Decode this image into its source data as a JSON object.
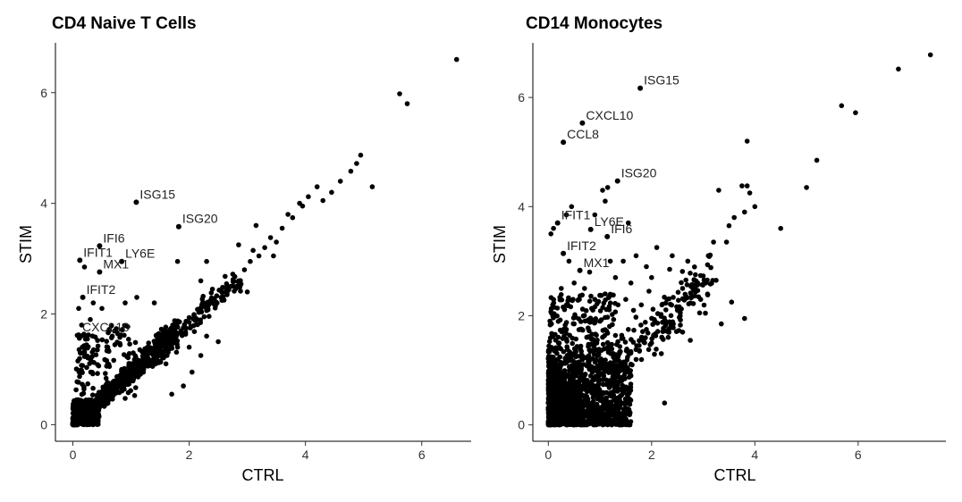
{
  "chart_data": [
    {
      "type": "scatter",
      "title": "CD4 Naive T Cells",
      "xlabel": "CTRL",
      "ylabel": "STIM",
      "xlim": [
        -0.3,
        6.85
      ],
      "ylim": [
        -0.3,
        6.9
      ],
      "xticks": [
        0,
        2,
        4,
        6
      ],
      "yticks": [
        0,
        2,
        4,
        6
      ],
      "grid": false,
      "labeled_points": [
        {
          "label": "ISG15",
          "x": 1.09,
          "y": 4.02
        },
        {
          "label": "ISG20",
          "x": 1.82,
          "y": 3.58
        },
        {
          "label": "IFI6",
          "x": 0.46,
          "y": 3.23
        },
        {
          "label": "IFIT1",
          "x": 0.12,
          "y": 2.97
        },
        {
          "label": "LY6E",
          "x": 0.84,
          "y": 2.95
        },
        {
          "label": "MX1",
          "x": 0.46,
          "y": 2.76
        },
        {
          "label": "IFIT2",
          "x": 0.17,
          "y": 2.3
        },
        {
          "label": "CXCL10",
          "x": 0.1,
          "y": 1.62
        }
      ],
      "points": [
        [
          6.6,
          6.6
        ],
        [
          5.62,
          5.98
        ],
        [
          5.75,
          5.8
        ],
        [
          5.15,
          4.3
        ],
        [
          4.95,
          4.87
        ],
        [
          4.88,
          4.72
        ],
        [
          4.78,
          4.58
        ],
        [
          4.6,
          4.4
        ],
        [
          4.45,
          4.2
        ],
        [
          4.3,
          4.05
        ],
        [
          4.2,
          4.3
        ],
        [
          4.05,
          4.12
        ],
        [
          3.95,
          3.95
        ],
        [
          3.9,
          4.0
        ],
        [
          3.78,
          3.74
        ],
        [
          3.7,
          3.8
        ],
        [
          3.6,
          3.55
        ],
        [
          3.5,
          3.3
        ],
        [
          3.4,
          3.38
        ],
        [
          3.3,
          3.2
        ],
        [
          3.2,
          3.05
        ],
        [
          3.1,
          3.15
        ],
        [
          3.05,
          2.95
        ],
        [
          2.95,
          2.8
        ],
        [
          2.85,
          2.6
        ],
        [
          2.75,
          2.72
        ],
        [
          2.65,
          2.5
        ],
        [
          2.55,
          2.3
        ],
        [
          2.4,
          2.45
        ],
        [
          2.3,
          2.2
        ],
        [
          2.2,
          2.05
        ],
        [
          2.1,
          1.9
        ],
        [
          2.0,
          1.85
        ],
        [
          1.9,
          1.75
        ],
        [
          2.85,
          3.25
        ],
        [
          3.15,
          3.6
        ],
        [
          2.3,
          2.95
        ],
        [
          3.45,
          3.05
        ],
        [
          3.0,
          2.4
        ],
        [
          2.6,
          2.25
        ],
        [
          2.2,
          2.6
        ],
        [
          1.8,
          2.95
        ],
        [
          1.1,
          2.3
        ],
        [
          0.9,
          2.2
        ],
        [
          0.2,
          2.85
        ],
        [
          0.1,
          2.1
        ],
        [
          0.35,
          2.2
        ],
        [
          0.3,
          1.9
        ],
        [
          0.5,
          2.1
        ],
        [
          0.15,
          1.8
        ],
        [
          0.25,
          1.55
        ],
        [
          0.2,
          1.3
        ],
        [
          0.6,
          1.4
        ],
        [
          1.4,
          2.2
        ],
        [
          1.5,
          1.3
        ],
        [
          1.7,
          1.65
        ],
        [
          1.6,
          1.1
        ],
        [
          1.8,
          1.4
        ],
        [
          2.5,
          1.5
        ],
        [
          2.3,
          1.6
        ],
        [
          2.2,
          1.25
        ],
        [
          2.05,
          0.95
        ],
        [
          1.9,
          0.7
        ],
        [
          1.7,
          0.55
        ],
        [
          2.0,
          1.4
        ]
      ],
      "dense_region": {
        "main_diagonal": {
          "x_range": [
            0.0,
            1.8
          ],
          "slope": 0.95,
          "noise": 0.22
        },
        "core_blob": {
          "x_range": [
            0.0,
            0.45
          ],
          "y_range": [
            0.0,
            0.45
          ]
        },
        "upper_scatter": {
          "x_range": [
            0.05,
            1.1
          ],
          "y_range": [
            0.2,
            1.6
          ]
        }
      }
    },
    {
      "type": "scatter",
      "title": "CD14 Monocytes",
      "xlabel": "CTRL",
      "ylabel": "STIM",
      "xlim": [
        -0.3,
        7.7
      ],
      "ylim": [
        -0.3,
        7.0
      ],
      "xticks": [
        0,
        2,
        4,
        6
      ],
      "yticks": [
        0,
        2,
        4,
        6
      ],
      "grid": false,
      "labeled_points": [
        {
          "label": "ISG15",
          "x": 1.78,
          "y": 6.17
        },
        {
          "label": "CXCL10",
          "x": 0.66,
          "y": 5.53
        },
        {
          "label": "CCL8",
          "x": 0.29,
          "y": 5.18
        },
        {
          "label": "ISG20",
          "x": 1.34,
          "y": 4.47
        },
        {
          "label": "IFIT1",
          "x": 0.18,
          "y": 3.7
        },
        {
          "label": "LY6E",
          "x": 0.82,
          "y": 3.58
        },
        {
          "label": "IFI6",
          "x": 1.14,
          "y": 3.45
        },
        {
          "label": "IFIT2",
          "x": 0.29,
          "y": 3.14
        },
        {
          "label": "MX1",
          "x": 0.61,
          "y": 2.83
        }
      ],
      "points": [
        [
          7.4,
          6.78
        ],
        [
          6.78,
          6.52
        ],
        [
          5.68,
          5.85
        ],
        [
          5.95,
          5.72
        ],
        [
          3.85,
          5.2
        ],
        [
          5.2,
          4.85
        ],
        [
          5.0,
          4.35
        ],
        [
          4.5,
          3.6
        ],
        [
          3.9,
          4.25
        ],
        [
          3.85,
          4.38
        ],
        [
          3.75,
          4.38
        ],
        [
          4.0,
          4.0
        ],
        [
          3.8,
          3.9
        ],
        [
          3.6,
          3.8
        ],
        [
          3.5,
          3.65
        ],
        [
          3.45,
          3.35
        ],
        [
          3.3,
          4.3
        ],
        [
          3.25,
          2.65
        ],
        [
          3.2,
          3.35
        ],
        [
          3.1,
          3.1
        ],
        [
          3.05,
          2.6
        ],
        [
          2.95,
          2.3
        ],
        [
          2.8,
          2.5
        ],
        [
          2.7,
          3.0
        ],
        [
          2.6,
          2.5
        ],
        [
          2.6,
          1.7
        ],
        [
          2.5,
          2.1
        ],
        [
          2.4,
          3.1
        ],
        [
          2.35,
          2.85
        ],
        [
          2.3,
          2.3
        ],
        [
          2.2,
          2.2
        ],
        [
          2.1,
          3.25
        ],
        [
          2.0,
          2.7
        ],
        [
          1.95,
          2.45
        ],
        [
          1.9,
          2.9
        ],
        [
          1.8,
          2.2
        ],
        [
          1.7,
          3.1
        ],
        [
          1.65,
          2.1
        ],
        [
          1.6,
          2.6
        ],
        [
          1.55,
          1.75
        ],
        [
          1.5,
          2.3
        ],
        [
          1.45,
          3.0
        ],
        [
          1.35,
          2.2
        ],
        [
          1.3,
          2.7
        ],
        [
          1.2,
          3.0
        ],
        [
          1.1,
          2.4
        ],
        [
          1.0,
          1.9
        ],
        [
          0.9,
          2.3
        ],
        [
          0.8,
          2.8
        ],
        [
          0.7,
          2.5
        ],
        [
          0.6,
          2.3
        ],
        [
          0.5,
          2.6
        ],
        [
          0.4,
          3.0
        ],
        [
          0.35,
          2.2
        ],
        [
          0.25,
          2.5
        ],
        [
          0.15,
          2.0
        ],
        [
          0.1,
          3.6
        ],
        [
          0.05,
          3.5
        ],
        [
          0.45,
          4.0
        ],
        [
          0.35,
          3.85
        ],
        [
          1.55,
          3.7
        ],
        [
          0.9,
          3.85
        ],
        [
          1.05,
          4.3
        ],
        [
          1.1,
          4.1
        ],
        [
          1.15,
          4.35
        ],
        [
          3.8,
          1.95
        ],
        [
          3.55,
          2.25
        ],
        [
          3.35,
          1.85
        ],
        [
          2.75,
          1.55
        ],
        [
          2.25,
          0.4
        ],
        [
          2.2,
          1.6
        ],
        [
          2.0,
          1.5
        ],
        [
          1.9,
          1.75
        ],
        [
          1.7,
          1.2
        ],
        [
          1.6,
          0.9
        ],
        [
          1.5,
          0.65
        ],
        [
          1.45,
          0.15
        ],
        [
          0.5,
          1.85
        ],
        [
          0.35,
          1.75
        ],
        [
          0.3,
          1.6
        ],
        [
          0.65,
          1.75
        ]
      ],
      "dense_region": {
        "main_blob": {
          "x_range": [
            0.0,
            1.6
          ],
          "y_range": [
            0.0,
            1.7
          ]
        },
        "core_blob": {
          "x_range": [
            0.0,
            0.6
          ],
          "y_range": [
            0.0,
            0.8
          ]
        },
        "upper_scatter": {
          "x_range": [
            0.0,
            1.3
          ],
          "y_range": [
            1.0,
            2.4
          ]
        }
      }
    }
  ]
}
